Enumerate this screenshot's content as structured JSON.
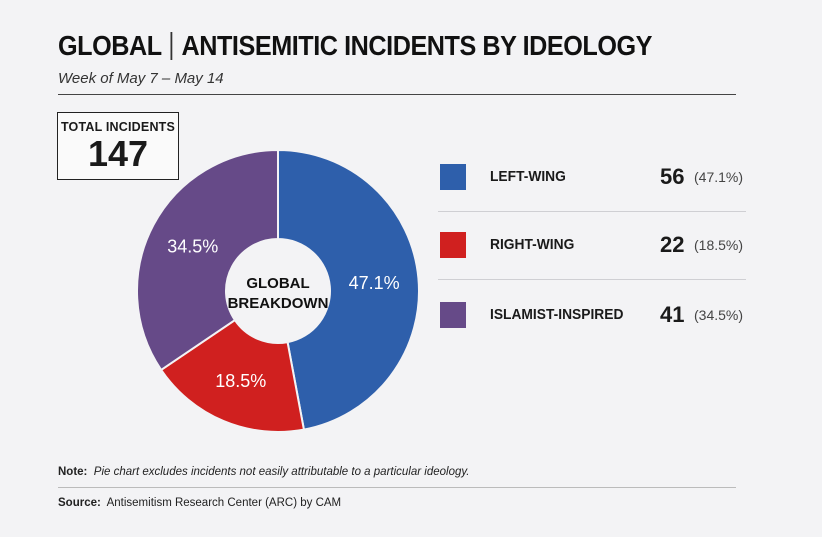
{
  "header": {
    "title_region": "GLOBAL",
    "title_main": "ANTISEMITIC INCIDENTS BY IDEOLOGY",
    "subtitle": "Week of May 7 – May 14"
  },
  "total": {
    "label": "TOTAL INCIDENTS",
    "value": "147"
  },
  "chart_data": {
    "type": "pie",
    "center_label_line1": "GLOBAL",
    "center_label_line2": "BREAKDOWN",
    "slices": [
      {
        "name": "LEFT-WING",
        "value": 56,
        "percent_label": "47.1%",
        "pct_paren": "(47.1%)",
        "color": "#2e5fab"
      },
      {
        "name": "RIGHT-WING",
        "value": 22,
        "percent_label": "18.5%",
        "pct_paren": "(18.5%)",
        "color": "#d0201f"
      },
      {
        "name": "ISLAMIST-INSPIRED",
        "value": 41,
        "percent_label": "34.5%",
        "pct_paren": "(34.5%)",
        "color": "#664a88"
      }
    ]
  },
  "footer": {
    "note_label": "Note:",
    "note_text": "Pie chart excludes incidents not easily attributable to a particular ideology.",
    "source_label": "Source:",
    "source_text": "Antisemitism Research Center (ARC) by CAM"
  }
}
